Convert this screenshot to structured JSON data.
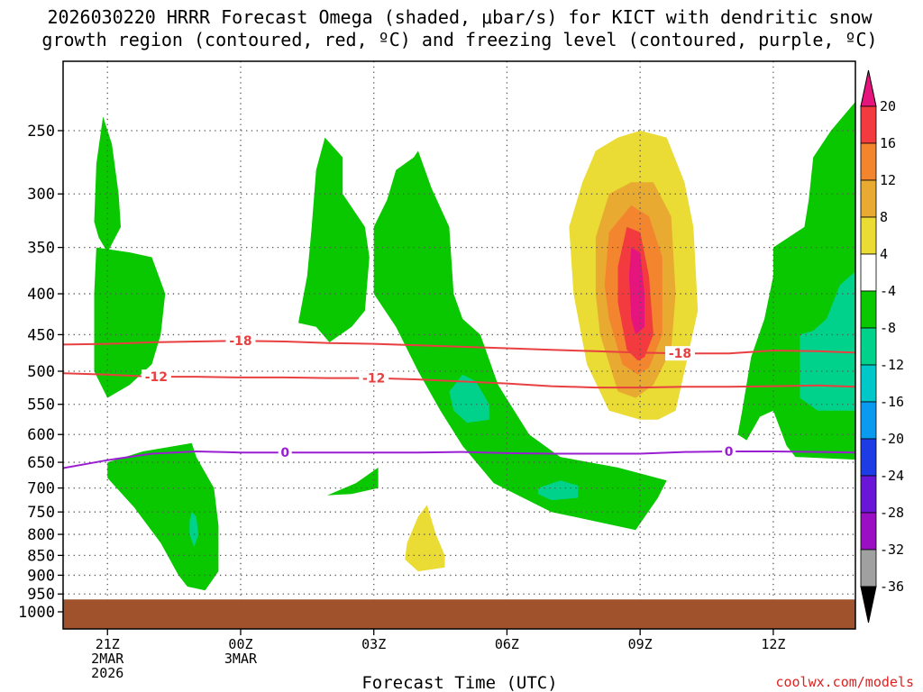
{
  "chart_data": {
    "type": "heatmap",
    "title_lines": [
      "2026030220 HRRR Forecast Omega (shaded, μbar/s) for KICT with dendritic snow",
      "growth region (contoured, red, ºC) and freezing level (contoured, purple, ºC)"
    ],
    "xlabel": "Forecast Time (UTC)",
    "credit": "coolwx.com/models",
    "x_ticks": [
      {
        "hour": 21,
        "lines": [
          "21Z",
          "2MAR",
          "2026"
        ]
      },
      {
        "hour": 24,
        "lines": [
          "00Z",
          "3MAR"
        ]
      },
      {
        "hour": 27,
        "lines": [
          "03Z"
        ]
      },
      {
        "hour": 30,
        "lines": [
          "06Z"
        ]
      },
      {
        "hour": 33,
        "lines": [
          "09Z"
        ]
      },
      {
        "hour": 36,
        "lines": [
          "12Z"
        ]
      }
    ],
    "xlim_hours": [
      20.0,
      37.85
    ],
    "y_ticks_hpa": [
      250,
      300,
      350,
      400,
      450,
      500,
      550,
      600,
      650,
      700,
      750,
      800,
      850,
      900,
      950,
      1000
    ],
    "ylim_hpa": [
      200,
      1040
    ],
    "ground_hpa": 965,
    "omega_colorbar": {
      "levels": [
        20,
        16,
        12,
        8,
        4,
        -4,
        -8,
        -12,
        -16,
        -20,
        -24,
        -28,
        -32,
        -36
      ],
      "colors": [
        "#f33b3f",
        "#f2852e",
        "#e8aa30",
        "#eadb35",
        "#ffffff",
        "#0ac800",
        "#00d28c",
        "#00c8c8",
        "#0a9bf0",
        "#1e3ce6",
        "#6a16d9",
        "#9b0fc4",
        "#a0a0a0"
      ],
      "top_color": "#e6147d",
      "bottom_color": "#000000"
    },
    "contours": [
      {
        "name": "minus-18",
        "label": "-18",
        "color": "#e84040",
        "points": [
          [
            20.0,
            463
          ],
          [
            21.0,
            462
          ],
          [
            22.0,
            460
          ],
          [
            23.0,
            459
          ],
          [
            24.0,
            458
          ],
          [
            25.0,
            459
          ],
          [
            26.0,
            461
          ],
          [
            27.0,
            462
          ],
          [
            28.0,
            464
          ],
          [
            29.0,
            466
          ],
          [
            30.0,
            468
          ],
          [
            31.0,
            470
          ],
          [
            32.0,
            472
          ],
          [
            33.0,
            474
          ],
          [
            34.0,
            475
          ],
          [
            35.0,
            475
          ],
          [
            36.0,
            471
          ],
          [
            37.0,
            472
          ],
          [
            37.85,
            474
          ]
        ],
        "label_positions": [
          24.0,
          33.9
        ]
      },
      {
        "name": "minus-12",
        "label": "-12",
        "color": "#e84040",
        "points": [
          [
            20.0,
            503
          ],
          [
            21.0,
            505
          ],
          [
            22.0,
            508
          ],
          [
            23.0,
            508
          ],
          [
            24.0,
            509
          ],
          [
            25.0,
            509
          ],
          [
            26.0,
            510
          ],
          [
            27.0,
            510
          ],
          [
            28.0,
            512
          ],
          [
            29.0,
            515
          ],
          [
            30.0,
            518
          ],
          [
            31.0,
            522
          ],
          [
            32.0,
            524
          ],
          [
            33.0,
            524
          ],
          [
            34.0,
            523
          ],
          [
            35.0,
            523
          ],
          [
            36.0,
            522
          ],
          [
            37.0,
            521
          ],
          [
            37.85,
            523
          ]
        ],
        "label_positions": [
          22.1,
          27.0
        ]
      },
      {
        "name": "zero",
        "label": "0",
        "color": "#9a1fd2",
        "points": [
          [
            20.0,
            661
          ],
          [
            21.0,
            646
          ],
          [
            22.0,
            634
          ],
          [
            23.0,
            630
          ],
          [
            24.0,
            632
          ],
          [
            25.0,
            632
          ],
          [
            26.0,
            632
          ],
          [
            27.0,
            632
          ],
          [
            28.0,
            632
          ],
          [
            29.0,
            631
          ],
          [
            30.0,
            633
          ],
          [
            31.0,
            634
          ],
          [
            32.0,
            634
          ],
          [
            33.0,
            634
          ],
          [
            34.0,
            631
          ],
          [
            35.0,
            630
          ],
          [
            36.0,
            630
          ],
          [
            37.0,
            631
          ],
          [
            37.85,
            632
          ]
        ],
        "label_positions": [
          25.0,
          35.0
        ]
      }
    ],
    "omega_regions": [
      {
        "name": "green-upper-left",
        "level": -4,
        "points": [
          [
            20.7,
            325
          ],
          [
            20.75,
            275
          ],
          [
            20.9,
            240
          ],
          [
            21.1,
            260
          ],
          [
            21.25,
            300
          ],
          [
            21.3,
            330
          ],
          [
            21.0,
            355
          ],
          [
            20.8,
            340
          ]
        ]
      },
      {
        "name": "green-left-main",
        "level": -4,
        "points": [
          [
            20.7,
            400
          ],
          [
            20.75,
            350
          ],
          [
            21.5,
            355
          ],
          [
            22.0,
            360
          ],
          [
            22.3,
            400
          ],
          [
            22.2,
            450
          ],
          [
            22.0,
            490
          ],
          [
            21.5,
            520
          ],
          [
            21.0,
            540
          ],
          [
            20.7,
            500
          ]
        ]
      },
      {
        "name": "green-lower-left",
        "level": -4,
        "points": [
          [
            21.0,
            680
          ],
          [
            21.0,
            650
          ],
          [
            21.8,
            630
          ],
          [
            22.9,
            615
          ],
          [
            23.0,
            640
          ],
          [
            23.4,
            700
          ],
          [
            23.5,
            780
          ],
          [
            23.5,
            890
          ],
          [
            23.2,
            940
          ],
          [
            22.8,
            930
          ],
          [
            22.6,
            900
          ],
          [
            22.2,
            820
          ],
          [
            21.6,
            740
          ]
        ]
      },
      {
        "name": "teal-lower-left",
        "level": -8,
        "points": [
          [
            22.85,
            770
          ],
          [
            22.9,
            750
          ],
          [
            23.0,
            760
          ],
          [
            23.05,
            800
          ],
          [
            22.95,
            830
          ],
          [
            22.85,
            800
          ]
        ]
      },
      {
        "name": "green-mid-1",
        "level": -4,
        "points": [
          [
            25.3,
            435
          ],
          [
            25.5,
            380
          ],
          [
            25.6,
            330
          ],
          [
            25.7,
            280
          ],
          [
            25.9,
            255
          ],
          [
            26.3,
            270
          ],
          [
            26.3,
            300
          ],
          [
            26.8,
            330
          ],
          [
            26.9,
            360
          ],
          [
            26.8,
            420
          ],
          [
            26.5,
            440
          ],
          [
            26.0,
            460
          ],
          [
            25.7,
            440
          ]
        ]
      },
      {
        "name": "green-mid-small",
        "level": -4,
        "points": [
          [
            25.95,
            715
          ],
          [
            26.6,
            690
          ],
          [
            27.1,
            660
          ],
          [
            27.1,
            700
          ],
          [
            26.5,
            712
          ]
        ]
      },
      {
        "name": "green-mid-2",
        "level": -4,
        "points": [
          [
            27.0,
            330
          ],
          [
            27.3,
            305
          ],
          [
            27.5,
            280
          ],
          [
            27.9,
            270
          ],
          [
            28.0,
            265
          ],
          [
            28.3,
            295
          ],
          [
            28.7,
            330
          ],
          [
            28.8,
            400
          ],
          [
            29.0,
            430
          ],
          [
            29.4,
            450
          ],
          [
            29.8,
            520
          ],
          [
            30.5,
            600
          ],
          [
            31.2,
            640
          ],
          [
            32.5,
            660
          ],
          [
            33.6,
            685
          ],
          [
            33.4,
            720
          ],
          [
            32.9,
            790
          ],
          [
            31.0,
            750
          ],
          [
            29.7,
            690
          ],
          [
            29.0,
            620
          ],
          [
            28.5,
            560
          ],
          [
            28.0,
            500
          ],
          [
            27.5,
            440
          ],
          [
            27.0,
            400
          ]
        ]
      },
      {
        "name": "teal-mid-a",
        "level": -8,
        "points": [
          [
            28.7,
            530
          ],
          [
            29.0,
            505
          ],
          [
            29.3,
            515
          ],
          [
            29.6,
            550
          ],
          [
            29.6,
            575
          ],
          [
            29.1,
            580
          ],
          [
            28.8,
            560
          ]
        ]
      },
      {
        "name": "teal-mid-b",
        "level": -8,
        "points": [
          [
            30.7,
            700
          ],
          [
            31.2,
            685
          ],
          [
            31.6,
            695
          ],
          [
            31.6,
            720
          ],
          [
            31.0,
            725
          ],
          [
            30.7,
            712
          ]
        ]
      },
      {
        "name": "green-right",
        "level": -4,
        "points": [
          [
            35.2,
            600
          ],
          [
            35.3,
            560
          ],
          [
            35.5,
            480
          ],
          [
            35.8,
            430
          ],
          [
            36.0,
            380
          ],
          [
            36.0,
            350
          ],
          [
            36.7,
            330
          ],
          [
            36.8,
            305
          ],
          [
            36.9,
            270
          ],
          [
            37.3,
            250
          ],
          [
            37.85,
            230
          ],
          [
            37.85,
            645
          ],
          [
            36.5,
            640
          ],
          [
            36.3,
            620
          ],
          [
            36.0,
            560
          ],
          [
            35.7,
            570
          ],
          [
            35.4,
            610
          ]
        ]
      },
      {
        "name": "teal-right",
        "level": -8,
        "points": [
          [
            36.6,
            450
          ],
          [
            36.9,
            445
          ],
          [
            37.2,
            430
          ],
          [
            37.5,
            390
          ],
          [
            37.85,
            375
          ],
          [
            37.85,
            560
          ],
          [
            37.0,
            560
          ],
          [
            36.6,
            540
          ]
        ]
      },
      {
        "name": "yellow-high",
        "level": 4,
        "points": [
          [
            33.0,
            575
          ],
          [
            32.3,
            560
          ],
          [
            31.8,
            490
          ],
          [
            31.5,
            400
          ],
          [
            31.4,
            330
          ],
          [
            31.7,
            290
          ],
          [
            32.0,
            265
          ],
          [
            32.5,
            255
          ],
          [
            33.0,
            250
          ],
          [
            33.6,
            255
          ],
          [
            34.0,
            290
          ],
          [
            34.2,
            330
          ],
          [
            34.3,
            420
          ],
          [
            34.0,
            500
          ],
          [
            33.8,
            560
          ],
          [
            33.4,
            575
          ]
        ]
      },
      {
        "name": "yellow-low",
        "level": 4,
        "points": [
          [
            27.7,
            860
          ],
          [
            27.75,
            820
          ],
          [
            28.0,
            760
          ],
          [
            28.2,
            735
          ],
          [
            28.4,
            800
          ],
          [
            28.6,
            850
          ],
          [
            28.6,
            880
          ],
          [
            28.0,
            890
          ]
        ]
      },
      {
        "name": "gold-high",
        "level": 8,
        "points": [
          [
            32.9,
            540
          ],
          [
            32.5,
            530
          ],
          [
            32.1,
            450
          ],
          [
            32.0,
            400
          ],
          [
            32.0,
            340
          ],
          [
            32.3,
            300
          ],
          [
            32.8,
            290
          ],
          [
            33.3,
            290
          ],
          [
            33.7,
            320
          ],
          [
            33.8,
            400
          ],
          [
            33.7,
            470
          ],
          [
            33.3,
            520
          ]
        ]
      },
      {
        "name": "orange-high",
        "level": 12,
        "points": [
          [
            32.95,
            505
          ],
          [
            32.6,
            490
          ],
          [
            32.3,
            430
          ],
          [
            32.2,
            390
          ],
          [
            32.3,
            335
          ],
          [
            32.8,
            310
          ],
          [
            33.2,
            320
          ],
          [
            33.5,
            360
          ],
          [
            33.5,
            450
          ],
          [
            33.2,
            495
          ]
        ]
      },
      {
        "name": "red-high",
        "level": 16,
        "points": [
          [
            32.95,
            485
          ],
          [
            32.7,
            470
          ],
          [
            32.5,
            410
          ],
          [
            32.5,
            370
          ],
          [
            32.7,
            330
          ],
          [
            33.0,
            335
          ],
          [
            33.2,
            380
          ],
          [
            33.3,
            450
          ],
          [
            33.1,
            480
          ]
        ]
      },
      {
        "name": "magenta-high",
        "level": 20,
        "points": [
          [
            32.9,
            450
          ],
          [
            32.8,
            430
          ],
          [
            32.75,
            380
          ],
          [
            32.8,
            350
          ],
          [
            33.0,
            355
          ],
          [
            33.1,
            400
          ],
          [
            33.1,
            440
          ]
        ]
      }
    ]
  }
}
